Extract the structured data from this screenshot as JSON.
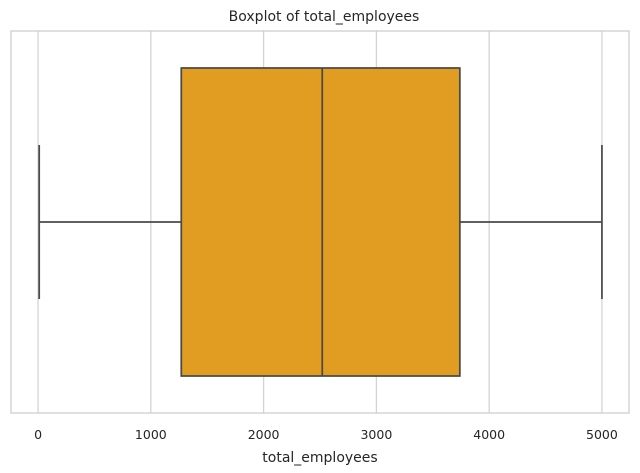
{
  "chart_data": {
    "type": "boxplot",
    "title": "Boxplot of total_employees",
    "xlabel": "total_employees",
    "ylabel": "",
    "xlim": [
      -240,
      5240
    ],
    "x_ticks": [
      0,
      1000,
      2000,
      3000,
      4000,
      5000
    ],
    "x_tick_labels": [
      "0",
      "1000",
      "2000",
      "3000",
      "4000",
      "5000"
    ],
    "grid": true,
    "box": {
      "min": 10,
      "q1": 1270,
      "median": 2520,
      "q3": 3740,
      "max": 5000
    },
    "colors": {
      "box_fill": "#e09d22",
      "box_edge": "#4a4a4a",
      "grid": "#d3d3d3",
      "frame": "#cccccc",
      "text": "#262626"
    }
  }
}
